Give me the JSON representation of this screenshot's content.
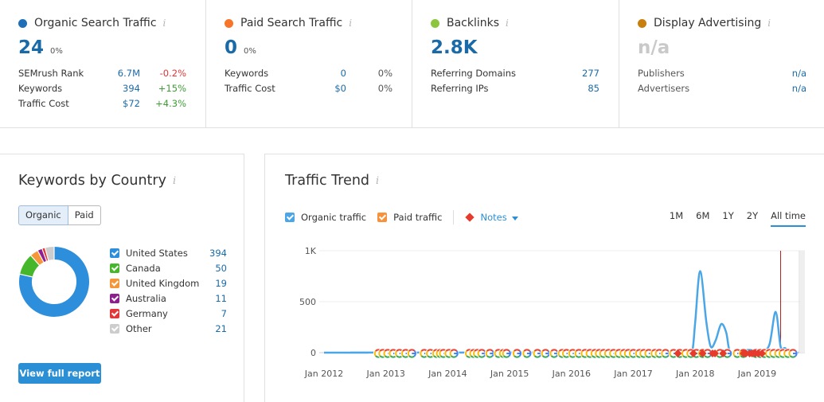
{
  "cards": [
    {
      "title": "Organic Search Traffic",
      "color": "#1e6fb8",
      "value": "24",
      "pct": "0%",
      "rows": [
        {
          "label": "SEMrush Rank",
          "value": "6.7M",
          "change": "-0.2%",
          "tone": "neg"
        },
        {
          "label": "Keywords",
          "value": "394",
          "change": "+15%",
          "tone": "pos"
        },
        {
          "label": "Traffic Cost",
          "value": "$72",
          "change": "+4.3%",
          "tone": "pos"
        }
      ]
    },
    {
      "title": "Paid Search Traffic",
      "color": "#f7752a",
      "value": "0",
      "pct": "0%",
      "rows": [
        {
          "label": "Keywords",
          "value": "0",
          "change": "0%",
          "tone": "plain"
        },
        {
          "label": "Traffic Cost",
          "value": "$0",
          "change": "0%",
          "tone": "plain"
        }
      ]
    },
    {
      "title": "Backlinks",
      "color": "#8cc63e",
      "value": "2.8K",
      "pct": "",
      "rows": [
        {
          "label": "Referring Domains",
          "value": "277"
        },
        {
          "label": "Referring IPs",
          "value": "85"
        }
      ]
    },
    {
      "title": "Display Advertising",
      "color": "#c87f0e",
      "value": "n/a",
      "pct": "",
      "rows": [
        {
          "label": "Publishers",
          "value": "n/a"
        },
        {
          "label": "Advertisers",
          "value": "n/a"
        }
      ]
    }
  ],
  "info_glyph": "i",
  "keywords_by_country": {
    "title": "Keywords by Country",
    "tabs": [
      "Organic",
      "Paid"
    ],
    "active_tab": "Organic",
    "countries": [
      {
        "name": "United States",
        "count": 394,
        "color": "#2d8fdb"
      },
      {
        "name": "Canada",
        "count": 50,
        "color": "#46b72b"
      },
      {
        "name": "United Kingdom",
        "count": 19,
        "color": "#f5963b"
      },
      {
        "name": "Australia",
        "count": 11,
        "color": "#8e1f8e"
      },
      {
        "name": "Germany",
        "count": 7,
        "color": "#e33837"
      },
      {
        "name": "Other",
        "count": 21,
        "color": "#cdcdcd"
      }
    ],
    "view_button": "View full report"
  },
  "traffic_trend": {
    "title": "Traffic Trend",
    "options": [
      {
        "label": "Organic traffic",
        "color": "#4aa6e6"
      },
      {
        "label": "Paid traffic",
        "color": "#f7923a"
      }
    ],
    "notes_label": "Notes",
    "ranges": [
      "1M",
      "6M",
      "1Y",
      "2Y",
      "All time"
    ],
    "active_range": "All time"
  },
  "chart_data": {
    "type": "line",
    "xlabels": [
      "Jan 2012",
      "Jan 2013",
      "Jan 2014",
      "Jan 2015",
      "Jan 2016",
      "Jan 2017",
      "Jan 2018",
      "Jan 2019"
    ],
    "yticks": [
      "1K",
      "500",
      "0"
    ],
    "ylim": [
      0,
      1000
    ],
    "xlim": [
      2012.0,
      2019.67
    ],
    "series": [
      {
        "name": "Organic traffic",
        "points": [
          [
            2012.0,
            0
          ],
          [
            2012.7,
            0
          ],
          [
            2012.75,
            1
          ],
          [
            2017.3,
            1
          ],
          [
            2017.85,
            4
          ],
          [
            2017.95,
            10
          ],
          [
            2018.0,
            300
          ],
          [
            2018.08,
            800
          ],
          [
            2018.18,
            300
          ],
          [
            2018.25,
            60
          ],
          [
            2018.33,
            120
          ],
          [
            2018.42,
            280
          ],
          [
            2018.5,
            200
          ],
          [
            2018.55,
            30
          ],
          [
            2018.62,
            0
          ],
          [
            2018.75,
            20
          ],
          [
            2018.9,
            25
          ],
          [
            2019.0,
            5
          ],
          [
            2019.08,
            5
          ],
          [
            2019.2,
            80
          ],
          [
            2019.3,
            400
          ],
          [
            2019.38,
            60
          ],
          [
            2019.45,
            45
          ],
          [
            2019.55,
            0
          ],
          [
            2019.67,
            0
          ]
        ]
      }
    ],
    "google_update_markers": [
      2012.88,
      2012.95,
      2013.03,
      2013.12,
      2013.22,
      2013.32,
      2013.42,
      2013.62,
      2013.72,
      2013.82,
      2013.88,
      2013.93,
      2014.02,
      2014.1,
      2014.35,
      2014.42,
      2014.48,
      2014.55,
      2014.68,
      2014.82,
      2014.9,
      2014.95,
      2015.12,
      2015.28,
      2015.45,
      2015.58,
      2015.72,
      2015.85,
      2015.92,
      2016.02,
      2016.12,
      2016.22,
      2016.3,
      2016.38,
      2016.45,
      2016.52,
      2016.6,
      2016.68,
      2016.77,
      2016.85,
      2016.92,
      2017.0,
      2017.1,
      2017.17,
      2017.25,
      2017.35,
      2017.42,
      2017.52,
      2017.65,
      2017.75,
      2017.85,
      2017.93,
      2018.02,
      2018.12,
      2018.2,
      2018.4,
      2018.52,
      2018.68,
      2018.78,
      2018.98,
      2019.05,
      2019.12,
      2019.2,
      2019.27,
      2019.35,
      2019.42,
      2019.5,
      2019.58
    ],
    "note_markers": [
      2017.72,
      2017.97,
      2018.12,
      2018.28,
      2018.32,
      2018.45,
      2018.78,
      2018.82,
      2018.88,
      2018.92,
      2018.97,
      2019.02,
      2019.08
    ],
    "vertical_note_line": 2019.38
  }
}
